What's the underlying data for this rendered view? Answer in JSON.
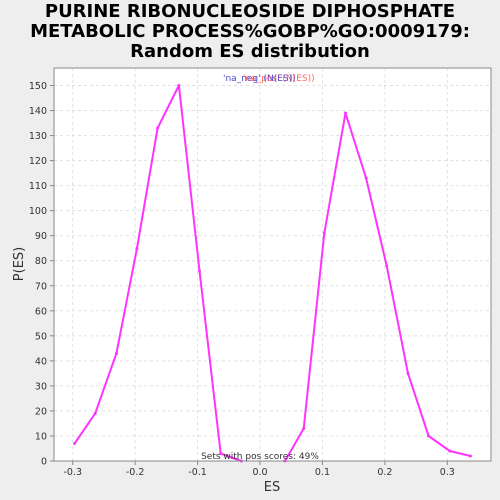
{
  "title_lines": [
    "PURINE RIBONUCLEOSIDE DIPHOSPHATE",
    "METABOLIC PROCESS%GOBP%GO:0009179:",
    "Random ES distribution"
  ],
  "chart_data": {
    "type": "line",
    "title": "PURINE RIBONUCLEOSIDE DIPHOSPHATE METABOLIC PROCESS%GOBP%GO:0009179: Random ES distribution",
    "xlabel": "ES",
    "ylabel": "P(ES)",
    "xlim": [
      -0.33,
      0.37
    ],
    "ylim": [
      0,
      157
    ],
    "x_ticks": [
      -0.3,
      -0.2,
      -0.1,
      0.0,
      0.1,
      0.2,
      0.3
    ],
    "x_tick_labels": [
      "-0.3",
      "-0.2",
      "-0.1",
      "0.0",
      "0.1",
      "0.2",
      "0.3"
    ],
    "y_ticks": [
      0,
      10,
      20,
      30,
      40,
      50,
      60,
      70,
      80,
      90,
      100,
      110,
      120,
      130,
      140,
      150
    ],
    "grid": true,
    "legend_labels": [
      "'na_neg' (N(ES))",
      "'na_pos' (N(ES))"
    ],
    "legend_position": "top-center",
    "annotation": "Sets with pos scores: 49%",
    "series": [
      {
        "color": "#ff33ff",
        "x": [
          -0.297,
          -0.264,
          -0.23,
          -0.197,
          -0.164,
          -0.13,
          -0.097,
          -0.063,
          -0.03
        ],
        "y": [
          7,
          19,
          43,
          85,
          133,
          150,
          76,
          3,
          0
        ]
      },
      {
        "color": "#ff33ff",
        "x": [
          0.04,
          0.07,
          0.103,
          0.137,
          0.17,
          0.203,
          0.237,
          0.27,
          0.304,
          0.337
        ],
        "y": [
          0,
          13,
          91,
          139,
          113,
          78,
          35,
          10,
          4,
          2
        ]
      }
    ]
  }
}
